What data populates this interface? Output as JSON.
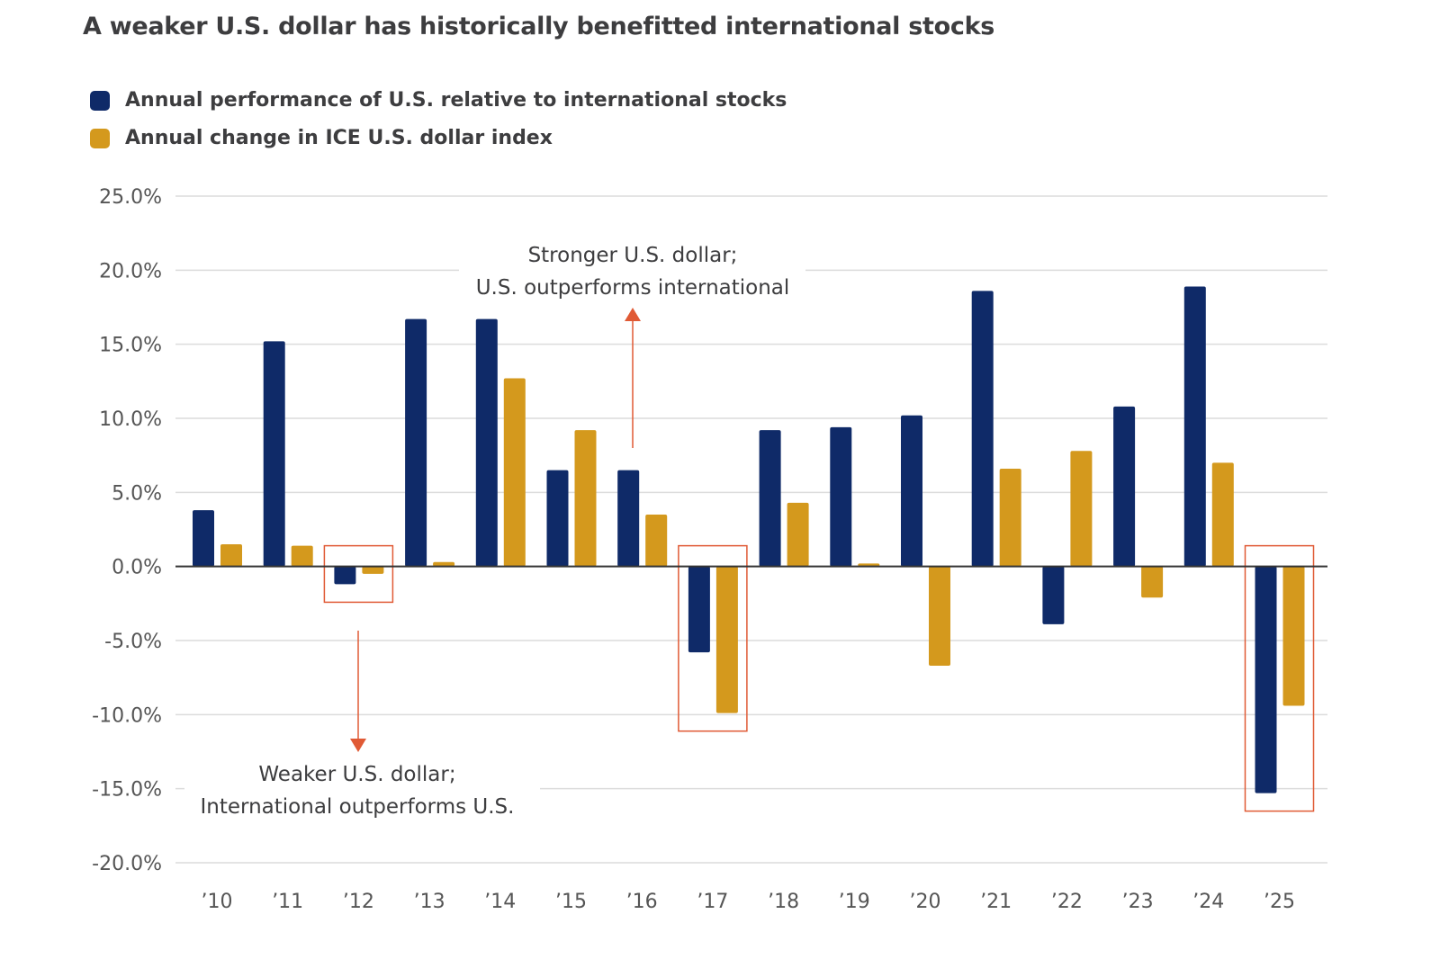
{
  "chart_data": {
    "type": "bar",
    "title": "A weaker U.S. dollar has historically benefitted international stocks",
    "categories": [
      "’10",
      "’11",
      "’12",
      "’13",
      "’14",
      "’15",
      "’16",
      "’17",
      "’18",
      "’19",
      "’20",
      "’21",
      "’22",
      "’23",
      "’24",
      "’25"
    ],
    "series": [
      {
        "name": "Annual performance of U.S. relative to international stocks",
        "color": "#0f2a68",
        "values": [
          3.8,
          15.2,
          -1.2,
          16.7,
          16.7,
          6.5,
          6.5,
          -5.8,
          9.2,
          9.4,
          10.2,
          18.6,
          -3.9,
          10.8,
          18.9,
          -15.3
        ]
      },
      {
        "name": "Annual change in ICE U.S. dollar index",
        "color": "#d4991d",
        "values": [
          1.5,
          1.4,
          -0.5,
          0.3,
          12.7,
          9.2,
          3.5,
          -9.9,
          4.3,
          0.2,
          -6.7,
          6.6,
          7.8,
          -2.1,
          7.0,
          -9.4
        ]
      }
    ],
    "ylim": [
      -20,
      25
    ],
    "yticks": [
      "-20.0%",
      "-15.0%",
      "-10.0%",
      "-5.0%",
      "0.0%",
      "5.0%",
      "10.0%",
      "15.0%",
      "20.0%",
      "25.0%"
    ],
    "grid": true,
    "legend": "top-left",
    "highlighted_categories": [
      "’12",
      "’17",
      "’25"
    ],
    "highlight_color": "#e05a35",
    "annotations": {
      "up": [
        "Stronger U.S. dollar;",
        "U.S. outperforms international"
      ],
      "down": [
        "Weaker U.S. dollar;",
        "International outperforms U.S."
      ]
    }
  }
}
